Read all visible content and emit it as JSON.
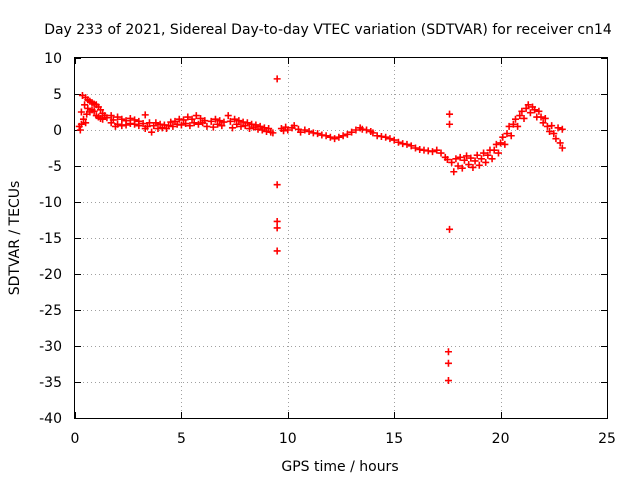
{
  "chart_data": {
    "type": "scatter",
    "title": "Day 233 of 2021, Sidereal Day-to-day VTEC variation (SDTVAR) for receiver cn14",
    "xlabel": "GPS time / hours",
    "ylabel": "SDTVAR / TECUs",
    "xlim": [
      0,
      25
    ],
    "ylim": [
      -40,
      10
    ],
    "xticks": [
      0,
      5,
      10,
      15,
      20,
      25
    ],
    "yticks": [
      10,
      5,
      0,
      -5,
      -10,
      -15,
      -20,
      -25,
      -30,
      -35,
      -40
    ],
    "grid": true,
    "marker": "+",
    "color": "#ff0000",
    "series": [
      {
        "name": "SDTVAR",
        "points": [
          [
            0.2,
            0.5
          ],
          [
            0.25,
            0.0
          ],
          [
            0.3,
            0.8
          ],
          [
            0.3,
            2.5
          ],
          [
            0.35,
            4.8
          ],
          [
            0.4,
            1.5
          ],
          [
            0.45,
            3.5
          ],
          [
            0.5,
            4.5
          ],
          [
            0.5,
            1.0
          ],
          [
            0.55,
            2.2
          ],
          [
            0.6,
            4.2
          ],
          [
            0.6,
            3.0
          ],
          [
            0.7,
            4.0
          ],
          [
            0.7,
            2.5
          ],
          [
            0.8,
            3.8
          ],
          [
            0.8,
            2.8
          ],
          [
            0.9,
            3.6
          ],
          [
            0.9,
            2.6
          ],
          [
            1.0,
            3.5
          ],
          [
            1.0,
            2.0
          ],
          [
            1.1,
            3.2
          ],
          [
            1.1,
            1.8
          ],
          [
            1.2,
            2.8
          ],
          [
            1.2,
            1.6
          ],
          [
            1.3,
            2.3
          ],
          [
            1.3,
            1.5
          ],
          [
            1.4,
            2.0
          ],
          [
            1.5,
            1.7
          ],
          [
            1.7,
            1.0
          ],
          [
            1.7,
            2.0
          ],
          [
            1.8,
            1.4
          ],
          [
            1.9,
            0.5
          ],
          [
            2.0,
            1.8
          ],
          [
            2.0,
            0.8
          ],
          [
            2.2,
            1.5
          ],
          [
            2.2,
            0.6
          ],
          [
            2.4,
            1.3
          ],
          [
            2.4,
            0.7
          ],
          [
            2.6,
            1.6
          ],
          [
            2.6,
            0.9
          ],
          [
            2.8,
            1.4
          ],
          [
            2.8,
            0.8
          ],
          [
            3.0,
            1.2
          ],
          [
            3.0,
            0.6
          ],
          [
            3.3,
            2.1
          ],
          [
            3.2,
            0.9
          ],
          [
            3.3,
            0.2
          ],
          [
            3.4,
            0.5
          ],
          [
            3.5,
            1.0
          ],
          [
            3.6,
            -0.3
          ],
          [
            3.7,
            0.6
          ],
          [
            3.8,
            1.0
          ],
          [
            3.9,
            0.2
          ],
          [
            4.0,
            0.8
          ],
          [
            4.1,
            0.3
          ],
          [
            4.2,
            0.7
          ],
          [
            4.3,
            0.2
          ],
          [
            4.4,
            0.6
          ],
          [
            4.5,
            1.1
          ],
          [
            4.6,
            0.5
          ],
          [
            4.7,
            1.2
          ],
          [
            4.8,
            0.8
          ],
          [
            4.9,
            1.5
          ],
          [
            5.0,
            0.7
          ],
          [
            5.1,
            1.4
          ],
          [
            5.2,
            0.9
          ],
          [
            5.3,
            1.8
          ],
          [
            5.4,
            0.6
          ],
          [
            5.5,
            1.5
          ],
          [
            5.6,
            1.0
          ],
          [
            5.7,
            2.0
          ],
          [
            5.8,
            0.8
          ],
          [
            5.9,
            1.6
          ],
          [
            6.0,
            1.0
          ],
          [
            6.1,
            1.3
          ],
          [
            6.2,
            0.5
          ],
          [
            6.4,
            1.2
          ],
          [
            6.5,
            0.4
          ],
          [
            6.6,
            1.5
          ],
          [
            6.7,
            0.8
          ],
          [
            6.8,
            1.3
          ],
          [
            6.9,
            0.6
          ],
          [
            7.0,
            1.1
          ],
          [
            7.2,
            2.0
          ],
          [
            7.3,
            1.2
          ],
          [
            7.4,
            0.3
          ],
          [
            7.5,
            1.5
          ],
          [
            7.6,
            0.8
          ],
          [
            7.7,
            1.3
          ],
          [
            7.8,
            0.5
          ],
          [
            7.9,
            1.1
          ],
          [
            8.0,
            0.6
          ],
          [
            8.1,
            1.0
          ],
          [
            8.2,
            0.2
          ],
          [
            8.3,
            0.8
          ],
          [
            8.4,
            0.4
          ],
          [
            8.5,
            0.7
          ],
          [
            8.6,
            0.1
          ],
          [
            8.7,
            0.5
          ],
          [
            8.8,
            0.0
          ],
          [
            8.9,
            0.3
          ],
          [
            9.0,
            -0.2
          ],
          [
            9.1,
            0.2
          ],
          [
            9.2,
            -0.3
          ],
          [
            9.3,
            -0.4
          ],
          [
            9.5,
            7.1
          ],
          [
            9.5,
            -7.6
          ],
          [
            9.5,
            -12.7
          ],
          [
            9.5,
            -13.6
          ],
          [
            9.5,
            -16.8
          ],
          [
            9.7,
            0.2
          ],
          [
            9.8,
            -0.1
          ],
          [
            9.9,
            0.4
          ],
          [
            10.0,
            0.0
          ],
          [
            10.2,
            0.3
          ],
          [
            10.3,
            0.6
          ],
          [
            10.5,
            0.1
          ],
          [
            10.6,
            -0.3
          ],
          [
            10.8,
            0.0
          ],
          [
            11.0,
            -0.2
          ],
          [
            11.2,
            -0.4
          ],
          [
            11.4,
            -0.5
          ],
          [
            11.6,
            -0.7
          ],
          [
            11.8,
            -0.8
          ],
          [
            12.0,
            -1.0
          ],
          [
            12.2,
            -1.2
          ],
          [
            12.4,
            -1.0
          ],
          [
            12.6,
            -0.8
          ],
          [
            12.8,
            -0.6
          ],
          [
            13.0,
            -0.3
          ],
          [
            13.2,
            0.0
          ],
          [
            13.4,
            0.3
          ],
          [
            13.5,
            0.1
          ],
          [
            13.7,
            0.0
          ],
          [
            13.9,
            -0.2
          ],
          [
            14.0,
            -0.4
          ],
          [
            14.2,
            -0.8
          ],
          [
            14.4,
            -0.9
          ],
          [
            14.6,
            -1.0
          ],
          [
            14.8,
            -1.2
          ],
          [
            15.0,
            -1.4
          ],
          [
            15.2,
            -1.7
          ],
          [
            15.4,
            -1.9
          ],
          [
            15.6,
            -2.0
          ],
          [
            15.8,
            -2.2
          ],
          [
            16.0,
            -2.5
          ],
          [
            16.2,
            -2.7
          ],
          [
            16.4,
            -2.8
          ],
          [
            16.6,
            -2.9
          ],
          [
            16.8,
            -3.0
          ],
          [
            17.0,
            -2.8
          ],
          [
            17.2,
            -3.2
          ],
          [
            17.4,
            -3.8
          ],
          [
            17.5,
            -4.1
          ],
          [
            17.6,
            2.2
          ],
          [
            17.6,
            0.8
          ],
          [
            17.6,
            -13.8
          ],
          [
            17.55,
            -30.8
          ],
          [
            17.55,
            -32.4
          ],
          [
            17.55,
            -34.8
          ],
          [
            17.7,
            -4.5
          ],
          [
            17.8,
            -5.8
          ],
          [
            17.9,
            -4.0
          ],
          [
            18.0,
            -5.0
          ],
          [
            18.1,
            -3.8
          ],
          [
            18.2,
            -5.3
          ],
          [
            18.3,
            -4.2
          ],
          [
            18.4,
            -3.6
          ],
          [
            18.5,
            -4.8
          ],
          [
            18.6,
            -3.9
          ],
          [
            18.7,
            -5.2
          ],
          [
            18.8,
            -4.3
          ],
          [
            18.9,
            -3.5
          ],
          [
            19.0,
            -4.9
          ],
          [
            19.1,
            -4.0
          ],
          [
            19.2,
            -3.2
          ],
          [
            19.3,
            -4.5
          ],
          [
            19.4,
            -3.5
          ],
          [
            19.5,
            -2.8
          ],
          [
            19.6,
            -4.0
          ],
          [
            19.7,
            -2.8
          ],
          [
            19.8,
            -2.0
          ],
          [
            19.9,
            -3.2
          ],
          [
            20.0,
            -1.8
          ],
          [
            20.1,
            -1.0
          ],
          [
            20.2,
            -2.0
          ],
          [
            20.3,
            -0.5
          ],
          [
            20.4,
            0.5
          ],
          [
            20.5,
            -0.8
          ],
          [
            20.6,
            0.8
          ],
          [
            20.7,
            1.5
          ],
          [
            20.8,
            0.5
          ],
          [
            20.9,
            2.0
          ],
          [
            21.0,
            2.6
          ],
          [
            21.1,
            1.6
          ],
          [
            21.2,
            3.0
          ],
          [
            21.3,
            3.5
          ],
          [
            21.4,
            2.4
          ],
          [
            21.5,
            3.2
          ],
          [
            21.6,
            2.8
          ],
          [
            21.7,
            1.8
          ],
          [
            21.8,
            2.6
          ],
          [
            21.9,
            1.8
          ],
          [
            22.0,
            1.0
          ],
          [
            22.1,
            1.6
          ],
          [
            22.2,
            0.5
          ],
          [
            22.3,
            -0.2
          ],
          [
            22.4,
            0.6
          ],
          [
            22.5,
            -0.5
          ],
          [
            22.6,
            -1.2
          ],
          [
            22.7,
            0.3
          ],
          [
            22.8,
            -1.8
          ],
          [
            22.9,
            -2.5
          ],
          [
            22.9,
            0.1
          ]
        ]
      }
    ]
  }
}
